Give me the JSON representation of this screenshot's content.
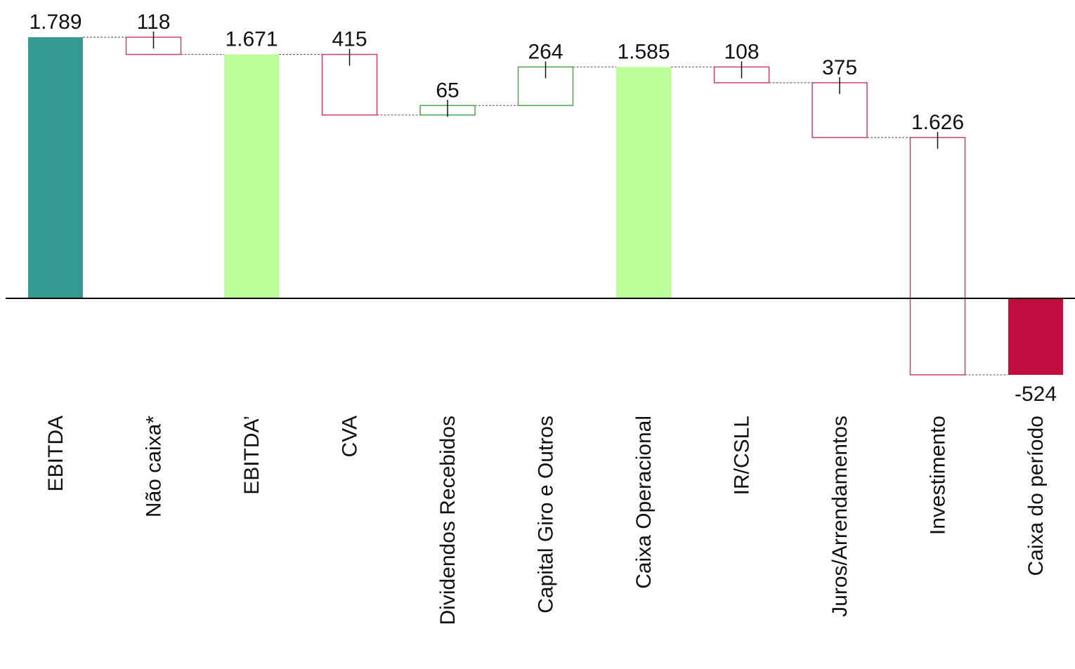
{
  "chart_data": {
    "type": "waterfall",
    "title": "",
    "xlabel": "",
    "ylabel": "",
    "ylim": [
      -524,
      1789
    ],
    "grid": false,
    "legend": "none",
    "colors": {
      "total_primary": "#369a92",
      "total_intermediate": "#bcff9a",
      "total_negative": "#c20e3e",
      "decrease_outline": "#cf3f6a",
      "increase_outline": "#4aa84a"
    },
    "categories": [
      "EBITDA",
      "Não caixa*",
      "EBITDA’",
      "CVA",
      "Dividendos Recebidos",
      "Capital Giro e Outros",
      "Caixa Operacional",
      "IR/CSLL",
      "Juros/Arrendamentos",
      "Investimento",
      "Caixa do período"
    ],
    "values": [
      1789,
      -118,
      1671,
      -415,
      65,
      264,
      1585,
      -108,
      -375,
      -1626,
      -524
    ],
    "kinds": [
      "total",
      "decrease",
      "total",
      "decrease",
      "increase",
      "increase",
      "total",
      "decrease",
      "decrease",
      "decrease",
      "total"
    ],
    "labels": [
      "1.789",
      "118",
      "1.671",
      "415",
      "65",
      "264",
      "1.585",
      "108",
      "375",
      "1.626",
      "-524"
    ]
  }
}
